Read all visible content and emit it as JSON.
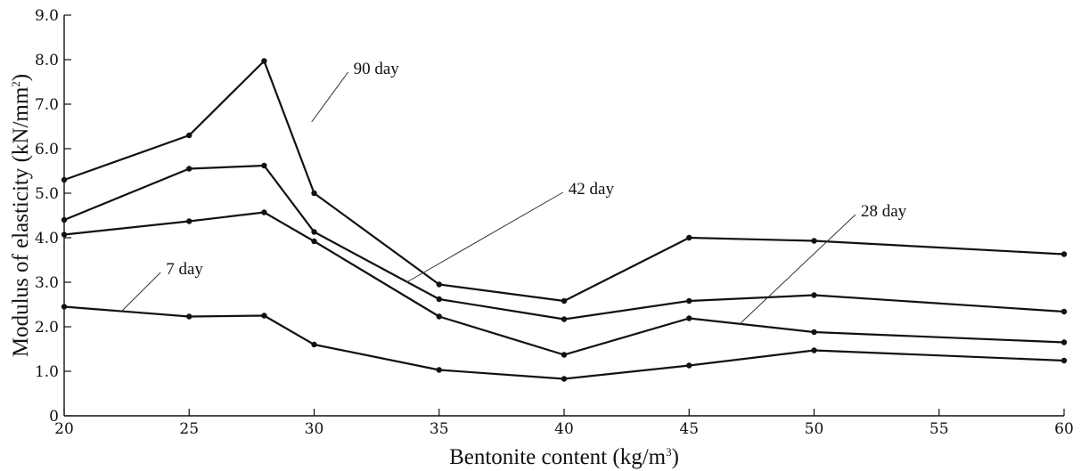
{
  "chart_data": {
    "type": "line",
    "xlabel": "Bentonite content (kg/m",
    "xlabel_sup": "3",
    "xlabel_end": ")",
    "ylabel": "Modulus of elasticity (kN/mm",
    "ylabel_sup": "2",
    "ylabel_end": ")",
    "xlim": [
      20,
      60
    ],
    "ylim": [
      0,
      9
    ],
    "x_ticks": [
      20,
      25,
      30,
      35,
      40,
      45,
      50,
      55,
      60
    ],
    "x_tick_labels": [
      "20",
      "25",
      "30",
      "35",
      "40",
      "45",
      "50",
      "55",
      "60"
    ],
    "y_ticks": [
      0,
      1,
      2,
      3,
      4,
      5,
      6,
      7,
      8,
      9
    ],
    "y_tick_labels": [
      "0",
      "1.0",
      "2.0",
      "3.0",
      "4.0",
      "5.0",
      "6.0",
      "7.0",
      "8.0",
      "9.0"
    ],
    "grid": false,
    "x": [
      20,
      25,
      28,
      30,
      35,
      40,
      45,
      50,
      60
    ],
    "series": [
      {
        "name": "90 day",
        "values": [
          5.3,
          6.3,
          7.97,
          5.0,
          2.95,
          2.58,
          4.0,
          3.93,
          3.63
        ]
      },
      {
        "name": "42 day",
        "values": [
          4.4,
          5.55,
          5.62,
          4.13,
          2.62,
          2.17,
          2.58,
          2.71,
          2.34
        ]
      },
      {
        "name": "28 day",
        "values": [
          4.07,
          4.37,
          4.57,
          3.92,
          2.23,
          1.37,
          2.19,
          1.88,
          1.65
        ]
      },
      {
        "name": "7 day",
        "values": [
          2.45,
          2.23,
          2.25,
          1.6,
          1.03,
          0.83,
          1.13,
          1.47,
          1.24
        ]
      }
    ],
    "annotations": [
      {
        "text": "90 day",
        "series": "90 day",
        "at_x": 29.9,
        "at_y": 6.6,
        "label_x": 31.5,
        "label_y": 7.8
      },
      {
        "text": "42 day",
        "series": "42 day",
        "at_x": 33.7,
        "at_y": 3.0,
        "label_x": 40.1,
        "label_y": 5.1
      },
      {
        "text": "28 day",
        "series": "28 day",
        "at_x": 47.0,
        "at_y": 2.05,
        "label_x": 51.8,
        "label_y": 4.6
      },
      {
        "text": "7 day",
        "series": "7 day",
        "at_x": 22.3,
        "at_y": 2.35,
        "label_x": 24.0,
        "label_y": 3.3
      }
    ]
  }
}
